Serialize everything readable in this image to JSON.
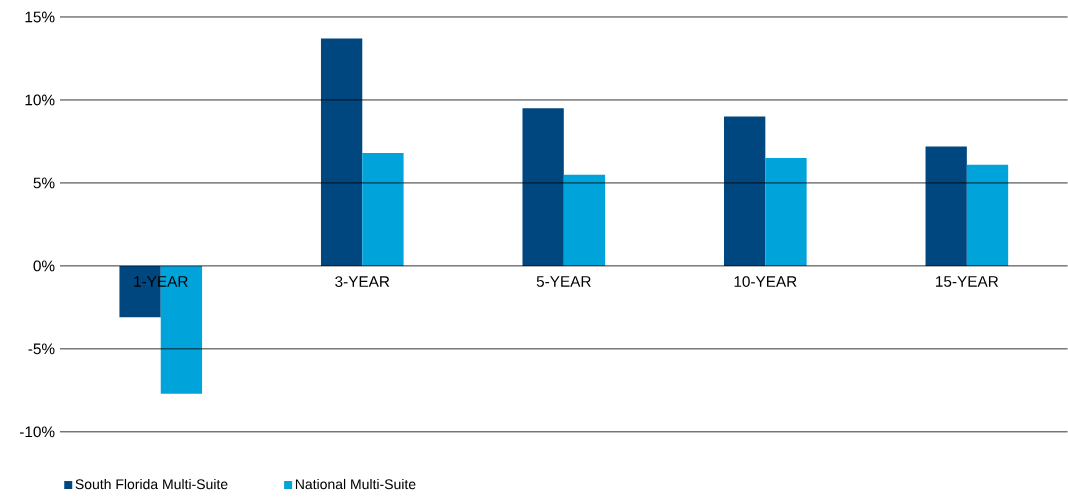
{
  "chart_data": {
    "type": "bar",
    "categories": [
      "1-YEAR",
      "3-YEAR",
      "5-YEAR",
      "10-YEAR",
      "15-YEAR"
    ],
    "series": [
      {
        "name": "South Florida Multi-Suite",
        "color": "#00467f",
        "values": [
          -3.1,
          13.7,
          9.5,
          9.0,
          7.2
        ]
      },
      {
        "name": "National Multi-Suite",
        "color": "#00a3da",
        "values": [
          -7.7,
          6.8,
          5.5,
          6.5,
          6.1
        ]
      }
    ],
    "ylim": [
      -10,
      15
    ],
    "yticks": [
      {
        "value": -10,
        "label": "-10%"
      },
      {
        "value": -5,
        "label": "-5%"
      },
      {
        "value": 0,
        "label": "0%"
      },
      {
        "value": 5,
        "label": "5%"
      },
      {
        "value": 10,
        "label": "10%"
      },
      {
        "value": 15,
        "label": "15%"
      }
    ],
    "grid": "y",
    "legend": "bottom left"
  }
}
